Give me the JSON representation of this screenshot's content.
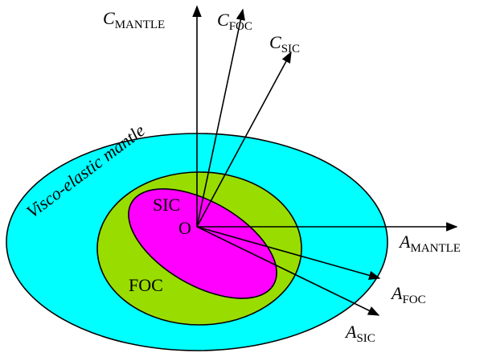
{
  "regions": {
    "inner": "SIC",
    "middle": "FOC",
    "outer": "Visco-elastic mantle"
  },
  "origin": "O",
  "axes": [
    {
      "main": "C",
      "sub": "MANTLE"
    },
    {
      "main": "C",
      "sub": "FOC"
    },
    {
      "main": "C",
      "sub": "SIC"
    },
    {
      "main": "A",
      "sub": "MANTLE"
    },
    {
      "main": "A",
      "sub": "FOC"
    },
    {
      "main": "A",
      "sub": "SIC"
    }
  ]
}
